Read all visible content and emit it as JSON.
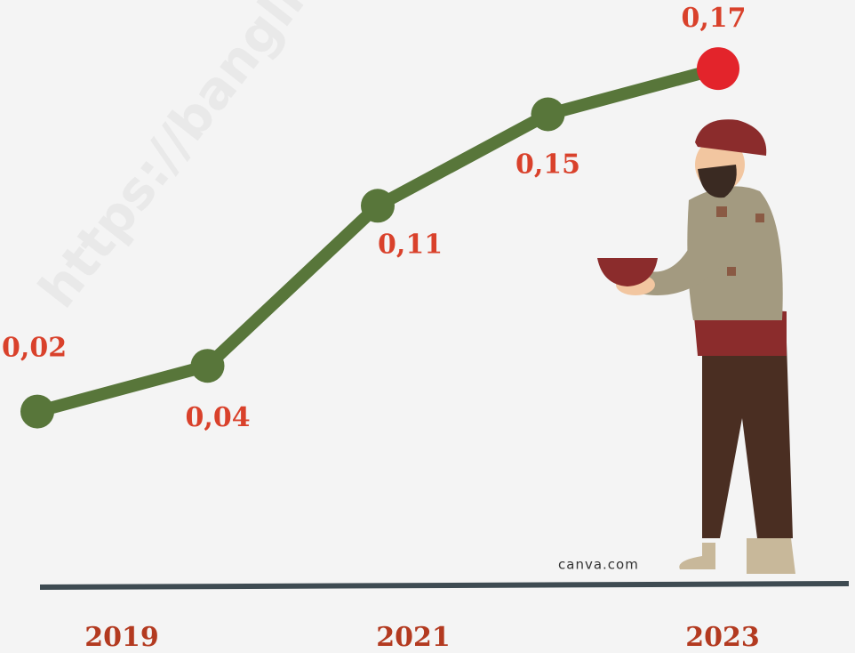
{
  "chart_data": {
    "type": "line",
    "categories": [
      "2019",
      null,
      "2021",
      null,
      "2023"
    ],
    "values": [
      0.02,
      0.04,
      0.11,
      0.15,
      0.17
    ],
    "value_labels": [
      "0,02",
      "0,04",
      "0,11",
      "0,15",
      "0,17"
    ],
    "color": "#58763a",
    "highlight_color": "#e3242b",
    "ylim": [
      0,
      0.2
    ],
    "watermark": "https://banglikab",
    "credit": "canva.com"
  }
}
